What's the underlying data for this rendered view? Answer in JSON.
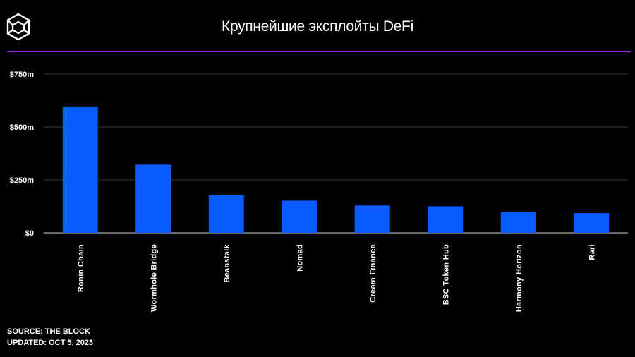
{
  "header": {
    "logo_icon": "the-block-cube-icon",
    "title": "Крупнейшие эксплойты DeFi"
  },
  "colors": {
    "background": "#000000",
    "bar": "#0a5cff",
    "rule": "#8a2be2",
    "grid": "#3a3a3a",
    "text": "#ffffff"
  },
  "chart_data": {
    "type": "bar",
    "title": "Крупнейшие эксплойты DeFi",
    "categories": [
      "Ronin Chain",
      "Wormhole Bridge",
      "Beanstalk",
      "Nomad",
      "Cream Finance",
      "BSC Token Hub",
      "Harmony Horizon",
      "Rari"
    ],
    "values": [
      597,
      322,
      180,
      152,
      129,
      125,
      100,
      93
    ],
    "unit": "m USD",
    "xlabel": "",
    "ylabel": "",
    "ylim": [
      0,
      750
    ],
    "yticks": [
      0,
      250,
      500,
      750
    ],
    "ytick_labels": [
      "$0",
      "$250m",
      "$500m",
      "$750m"
    ],
    "grid": true,
    "legend": "none"
  },
  "footer": {
    "source": "SOURCE: THE BLOCK",
    "updated": "UPDATED: OCT 5, 2023"
  }
}
